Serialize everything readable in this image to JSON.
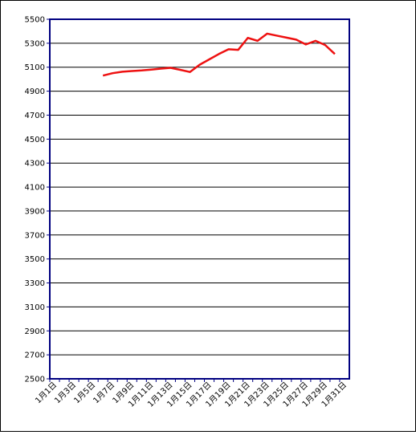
{
  "chart_data": {
    "type": "line",
    "categories": [
      "1月1日",
      null,
      "1月3日",
      null,
      "1月5日",
      null,
      "1月7日",
      null,
      "1月9日",
      null,
      "1月11日",
      null,
      "1月13日",
      null,
      "1月15日",
      null,
      "1月17日",
      null,
      "1月19日",
      null,
      "1月21日",
      null,
      "1月23日",
      null,
      "1月25日",
      null,
      "1月27日",
      null,
      "1月29日",
      null,
      "1月31日"
    ],
    "series": [
      {
        "color": "#ee1111",
        "values": [
          null,
          null,
          null,
          null,
          null,
          5030,
          5050,
          5062,
          5068,
          5073,
          5080,
          5088,
          5095,
          5078,
          5060,
          5120,
          5165,
          5210,
          5250,
          5245,
          5345,
          5320,
          5380,
          5363,
          5347,
          5330,
          5290,
          5320,
          5285,
          5210,
          null
        ]
      }
    ],
    "ylim": [
      2500,
      5500
    ],
    "yticks": [
      2500,
      2700,
      2900,
      3100,
      3300,
      3500,
      3700,
      3900,
      4100,
      4300,
      4500,
      4700,
      4900,
      5100,
      5300,
      5500
    ],
    "grid": true
  }
}
